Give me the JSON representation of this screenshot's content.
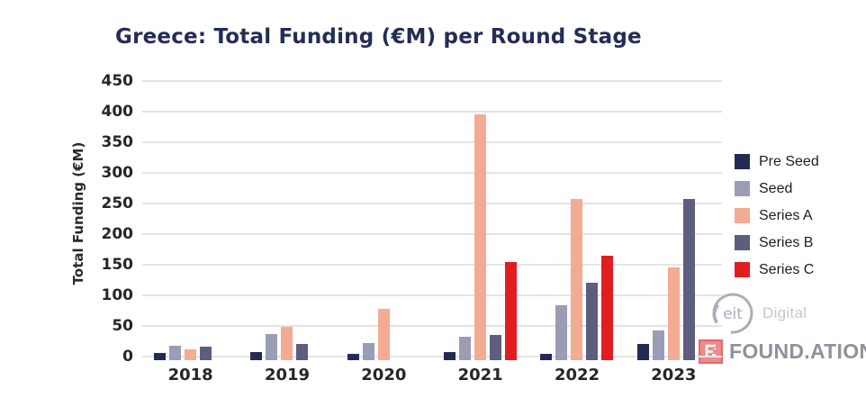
{
  "title": "Greece: Total Funding (€M) per Round Stage",
  "y_axis": {
    "label": "Total Funding (€M)",
    "ticks": [
      "450",
      "400",
      "350",
      "300",
      "250",
      "200",
      "150",
      "100",
      "50",
      "0"
    ]
  },
  "chart_data": {
    "type": "bar",
    "title": "Greece: Total Funding (€M) per Round Stage",
    "xlabel": "",
    "ylabel": "Total Funding (€M)",
    "categories": [
      "2018",
      "2019",
      "2020",
      "2021",
      "2022",
      "2023"
    ],
    "series": [
      {
        "name": "Pre Seed",
        "color": "#222c52",
        "values": [
          6,
          8,
          4,
          7,
          4,
          20
        ]
      },
      {
        "name": "Seed",
        "color": "#9b9cb5",
        "values": [
          18,
          37,
          22,
          32,
          84,
          42
        ]
      },
      {
        "name": "Series A",
        "color": "#f4ab94",
        "values": [
          12,
          48,
          78,
          395,
          257,
          145
        ]
      },
      {
        "name": "Series B",
        "color": "#5d5e7e",
        "values": [
          16,
          21,
          0,
          36,
          120,
          258
        ]
      },
      {
        "name": "Series C",
        "color": "#e01e1f",
        "values": [
          0,
          0,
          0,
          155,
          164,
          0
        ]
      }
    ],
    "ylim": [
      0,
      450
    ],
    "ytick_step": 50,
    "grid": true,
    "legend_position": "right"
  },
  "logos": {
    "eit_digital": {
      "mark_text": "eit",
      "text": "Digital",
      "color": "#a9aeb7"
    },
    "foundation": {
      "text": "FOUND.ATION",
      "icon_color": "#ee8a8a",
      "text_color": "#8d929b"
    }
  }
}
